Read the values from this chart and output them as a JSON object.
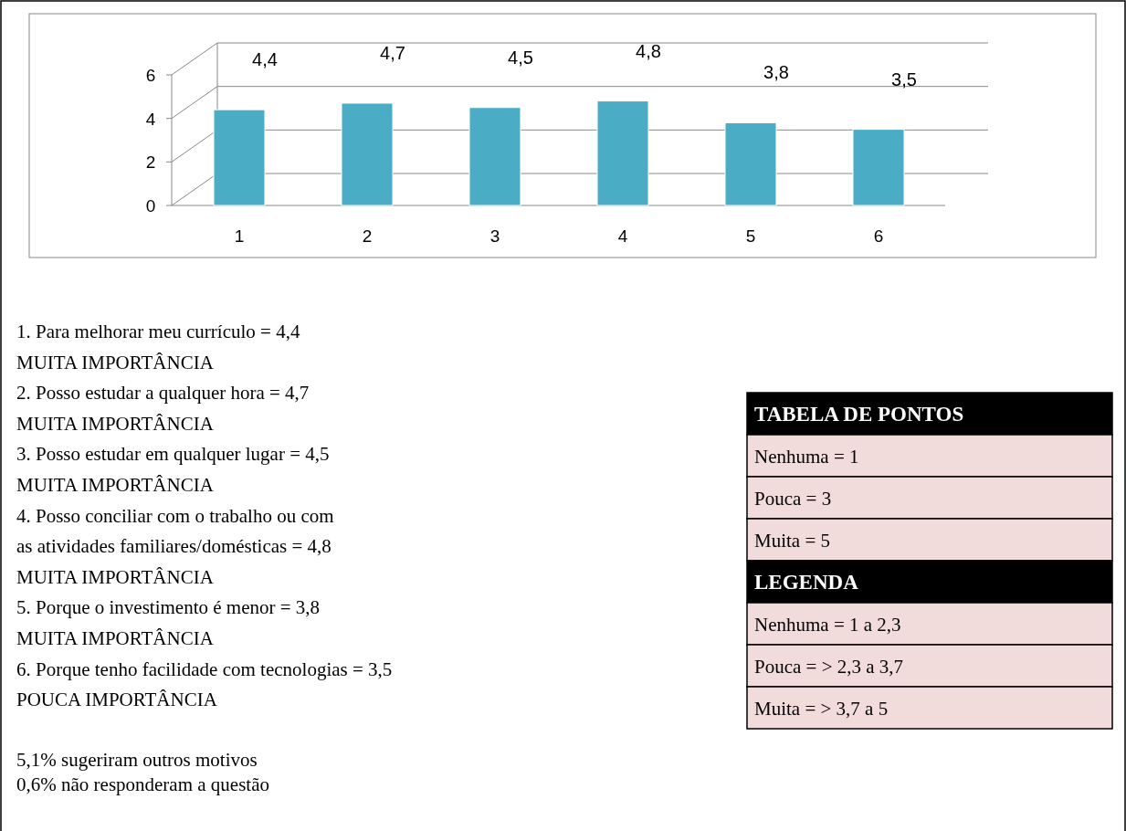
{
  "chart_data": {
    "type": "bar",
    "categories": [
      "1",
      "2",
      "3",
      "4",
      "5",
      "6"
    ],
    "values": [
      4.4,
      4.7,
      4.5,
      4.8,
      3.8,
      3.5
    ],
    "value_labels": [
      "4,4",
      "4,7",
      "4,5",
      "4,8",
      "3,8",
      "3,5"
    ],
    "color": "#4bacc6",
    "ylim": [
      0,
      6
    ],
    "yticks": [
      0,
      2,
      4,
      6
    ],
    "grid": "y",
    "annotations": [
      "1. Para melhorar meu currículo = 4,4",
      "MUITA IMPORTÂNCIA",
      "2. Posso estudar a qualquer hora = 4,7",
      "MUITA IMPORTÂNCIA",
      "3. Posso estudar em qualquer lugar = 4,5",
      "MUITA IMPORTÂNCIA",
      "4. Posso conciliar com o trabalho ou com",
      "as atividades familiares/domésticas = 4,8",
      "MUITA IMPORTÂNCIA",
      "5. Porque o investimento é menor  =  3,8",
      "MUITA IMPORTÂNCIA",
      "6. Porque tenho facilidade com tecnologias  =  3,5",
      "POUCA IMPORTÂNCIA",
      "5,1%  sugeriram outros motivos",
      "0,6% não responderam a questão",
      "TABELA DE PONTOS",
      "Nenhuma = 1",
      "Pouca = 3",
      "Muita = 5",
      "LEGENDA",
      "Nenhuma = 1 a 2,3",
      "Pouca = > 2,3 a 3,7",
      "Muita = > 3,7 a 5"
    ]
  }
}
